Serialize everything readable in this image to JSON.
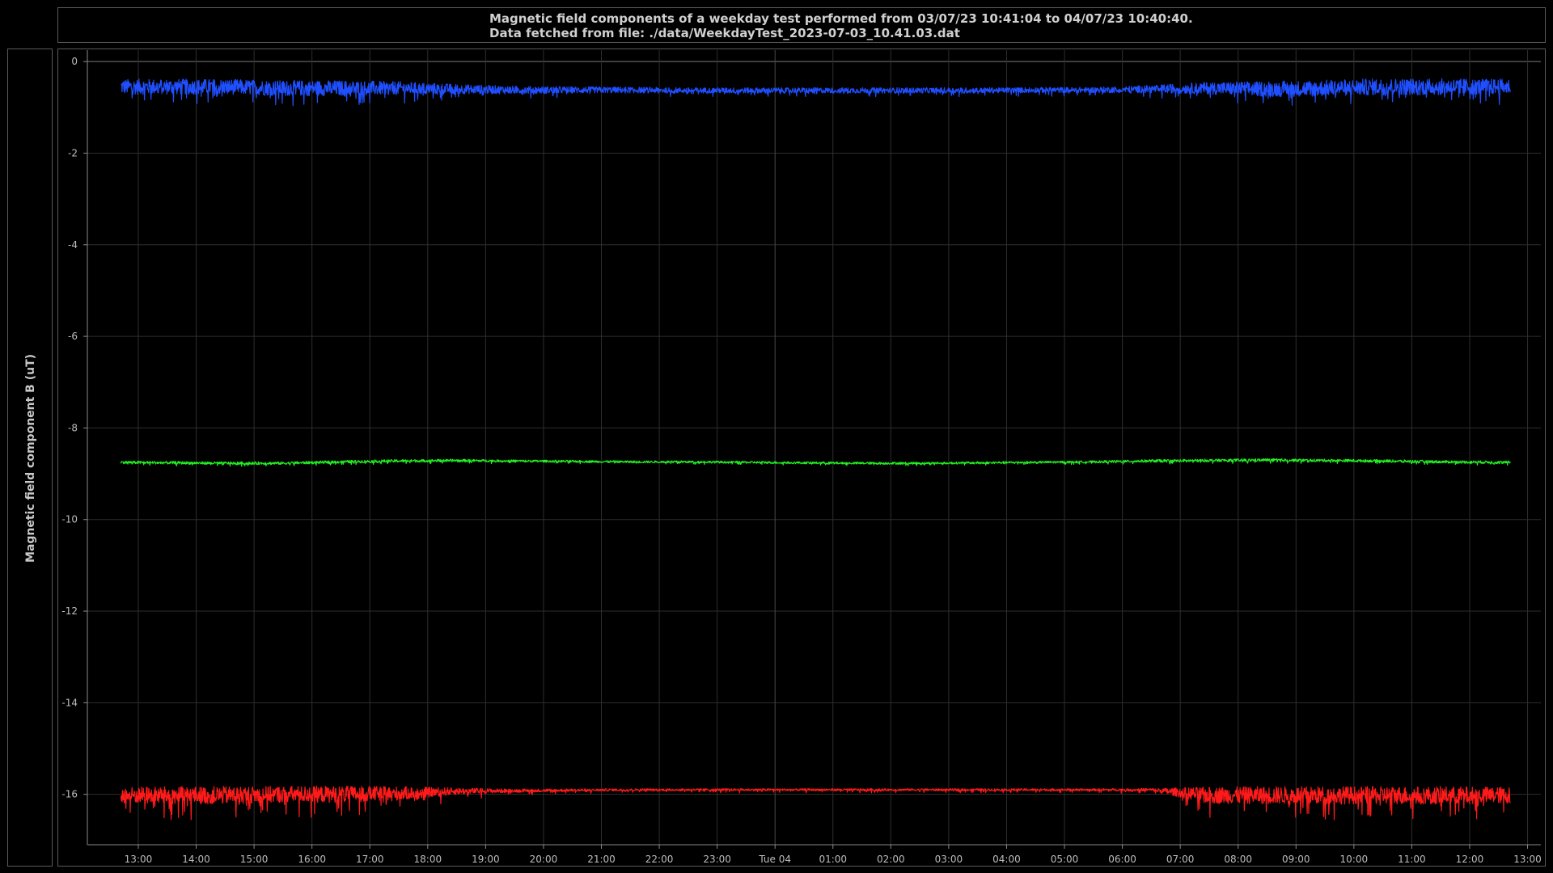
{
  "header": {
    "title_line1": "Magnetic field components of a weekday test performed from 03/07/23 10:41:04 to 04/07/23 10:40:40.",
    "title_line2": "Data fetched from file: ./data/WeekdayTest_2023-07-03_10.41.03.dat"
  },
  "chart_data": {
    "type": "line",
    "title": "Magnetic field components of a weekday test performed from 03/07/23 10:41:04 to 04/07/23 10:40:40.",
    "ylabel": "Magnetic field component B (uT)",
    "xlabel": "",
    "ylim": [
      -17.1,
      0.25
    ],
    "xlim": [
      -0.88,
      24.23
    ],
    "y_ticks": [
      "0",
      "-2",
      "-4",
      "-6",
      "-8",
      "-10",
      "-12",
      "-14",
      "-16"
    ],
    "y_tick_values": [
      0,
      -2,
      -4,
      -6,
      -8,
      -10,
      -12,
      -14,
      -16
    ],
    "x_ticks": [
      "13:00",
      "14:00",
      "15:00",
      "16:00",
      "17:00",
      "18:00",
      "19:00",
      "20:00",
      "21:00",
      "22:00",
      "23:00",
      "Tue 04",
      "01:00",
      "02:00",
      "03:00",
      "04:00",
      "05:00",
      "06:00",
      "07:00",
      "08:00",
      "09:00",
      "10:00",
      "11:00",
      "12:00",
      "13:00"
    ],
    "x_tick_hours": [
      0,
      1,
      2,
      3,
      4,
      5,
      6,
      7,
      8,
      9,
      10,
      11,
      12,
      13,
      14,
      15,
      16,
      17,
      18,
      19,
      20,
      21,
      22,
      23,
      24
    ],
    "grid": true,
    "x": [
      -0.3,
      0.5,
      1.5,
      2.5,
      3.5,
      4.5,
      5.5,
      6.5,
      7.5,
      8.5,
      9.5,
      10.5,
      11.5,
      12.5,
      13.5,
      14.5,
      15.5,
      16.5,
      17.5,
      18.5,
      19.5,
      20.5,
      21.5,
      22.5,
      23.7
    ],
    "series": [
      {
        "color": "#1f4fff",
        "values": [
          -0.55,
          -0.55,
          -0.55,
          -0.58,
          -0.58,
          -0.58,
          -0.6,
          -0.62,
          -0.62,
          -0.62,
          -0.63,
          -0.63,
          -0.63,
          -0.63,
          -0.63,
          -0.63,
          -0.62,
          -0.62,
          -0.6,
          -0.58,
          -0.6,
          -0.58,
          -0.55,
          -0.55,
          -0.55
        ],
        "spread": [
          0.28,
          0.28,
          0.28,
          0.28,
          0.28,
          0.24,
          0.18,
          0.14,
          0.12,
          0.11,
          0.1,
          0.1,
          0.1,
          0.1,
          0.1,
          0.1,
          0.1,
          0.1,
          0.14,
          0.22,
          0.28,
          0.3,
          0.3,
          0.3,
          0.28
        ]
      },
      {
        "color": "#22ee22",
        "values": [
          -8.75,
          -8.76,
          -8.77,
          -8.77,
          -8.74,
          -8.72,
          -8.71,
          -8.72,
          -8.73,
          -8.74,
          -8.74,
          -8.75,
          -8.76,
          -8.77,
          -8.77,
          -8.76,
          -8.75,
          -8.74,
          -8.72,
          -8.71,
          -8.7,
          -8.71,
          -8.72,
          -8.74,
          -8.75
        ],
        "spread": [
          0.05,
          0.05,
          0.05,
          0.05,
          0.05,
          0.05,
          0.05,
          0.04,
          0.04,
          0.04,
          0.04,
          0.04,
          0.04,
          0.04,
          0.04,
          0.04,
          0.04,
          0.04,
          0.05,
          0.05,
          0.05,
          0.05,
          0.05,
          0.05,
          0.05
        ]
      },
      {
        "color": "#ff1a1a",
        "values": [
          -16.02,
          -16.02,
          -16.02,
          -16.0,
          -16.0,
          -15.98,
          -15.93,
          -15.92,
          -15.91,
          -15.9,
          -15.9,
          -15.9,
          -15.9,
          -15.9,
          -15.9,
          -15.9,
          -15.9,
          -15.9,
          -15.9,
          -16.02,
          -16.02,
          -16.02,
          -16.02,
          -16.02,
          -16.02
        ],
        "spread": [
          0.3,
          0.32,
          0.32,
          0.3,
          0.3,
          0.25,
          0.12,
          0.06,
          0.05,
          0.04,
          0.04,
          0.04,
          0.04,
          0.04,
          0.04,
          0.04,
          0.04,
          0.04,
          0.05,
          0.3,
          0.32,
          0.32,
          0.32,
          0.32,
          0.3
        ]
      }
    ]
  }
}
